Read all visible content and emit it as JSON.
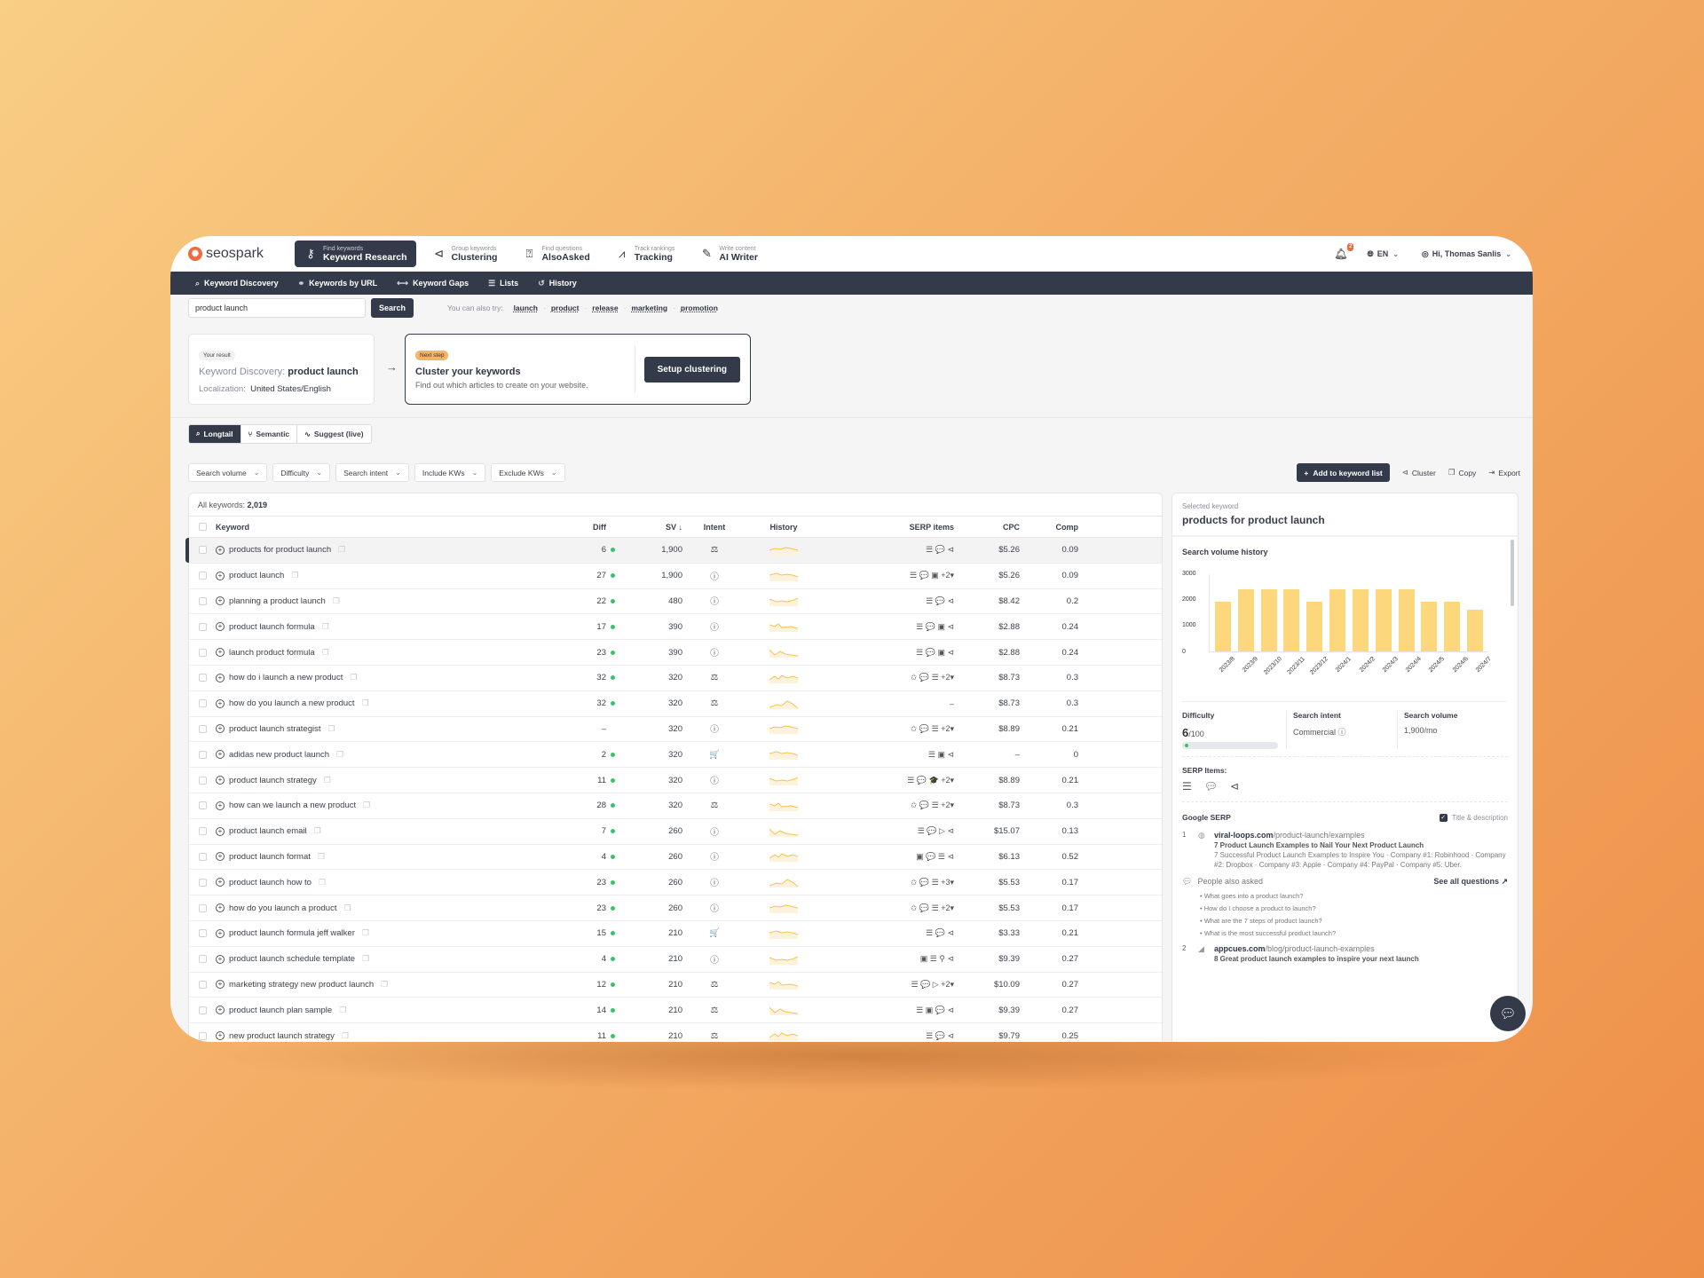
{
  "app": {
    "logo_text": "seospark",
    "logo_icon": "spark-logo-icon"
  },
  "topnav": {
    "items": [
      {
        "sub": "Find keywords",
        "label": "Keyword Research",
        "icon": "key-icon",
        "active": true
      },
      {
        "sub": "Group keywords",
        "label": "Clustering",
        "icon": "cluster-icon"
      },
      {
        "sub": "Find questions",
        "label": "AlsoAsked",
        "icon": "question-chat-icon"
      },
      {
        "sub": "Track rankings",
        "label": "Tracking",
        "icon": "chart-line-icon"
      },
      {
        "sub": "Write content",
        "label": "AI Writer",
        "icon": "feather-icon"
      }
    ],
    "notifications": "2",
    "language": "EN",
    "user_greeting": "Hi, Thomas Sanlis"
  },
  "subnav": {
    "items": [
      {
        "label": "Keyword Discovery",
        "icon": "search-icon"
      },
      {
        "label": "Keywords by URL",
        "icon": "link-icon"
      },
      {
        "label": "Keyword Gaps",
        "icon": "gap-icon"
      },
      {
        "label": "Lists",
        "icon": "list-icon"
      },
      {
        "label": "History",
        "icon": "history-icon"
      }
    ]
  },
  "search": {
    "value": "product launch",
    "button": "Search",
    "try_label": "You can also try:",
    "suggestions": [
      "launch",
      "product",
      "release",
      "marketing",
      "promotion"
    ]
  },
  "result_card": {
    "pill": "Your result",
    "title_prefix": "Keyword Discovery:",
    "title_keyword": "product launch",
    "loc_label": "Localization:",
    "loc_value": "United States/English"
  },
  "next_step": {
    "pill": "Next step",
    "title": "Cluster your keywords",
    "subtitle": "Find out which articles to create on your website.",
    "button": "Setup clustering"
  },
  "tabs": [
    {
      "label": "Longtail",
      "icon": "search-icon",
      "active": true
    },
    {
      "label": "Semantic",
      "icon": "branch-icon"
    },
    {
      "label": "Suggest (live)",
      "icon": "pulse-icon"
    }
  ],
  "filters": [
    "Search volume",
    "Difficulty",
    "Search intent",
    "Include KWs",
    "Exclude KWs"
  ],
  "actions": {
    "add": "Add to keyword list",
    "cluster": "Cluster",
    "copy": "Copy",
    "export": "Export"
  },
  "table": {
    "count_label": "All keywords:",
    "count": "2,019",
    "headers": {
      "keyword": "Keyword",
      "diff": "Diff",
      "sv": "SV",
      "intent": "Intent",
      "history": "History",
      "serp": "SERP items",
      "cpc": "CPC",
      "comp": "Comp"
    },
    "rows": [
      {
        "kw": "products for product launch",
        "diff": "6",
        "sv": "1,900",
        "intent": "⚖",
        "serp": "☰ 💬 ⊲",
        "cpc": "$5.26",
        "comp": "0.09"
      },
      {
        "kw": "product launch",
        "diff": "27",
        "sv": "1,900",
        "intent": "ⓘ",
        "serp": "☰ 💬 ▣ +2▾",
        "cpc": "$5.26",
        "comp": "0.09"
      },
      {
        "kw": "planning a product launch",
        "diff": "22",
        "sv": "480",
        "intent": "ⓘ",
        "serp": "☰ 💬 ⊲",
        "cpc": "$8.42",
        "comp": "0.2"
      },
      {
        "kw": "product launch formula",
        "diff": "17",
        "sv": "390",
        "intent": "ⓘ",
        "serp": "☰ 💬 ▣ ⊲",
        "cpc": "$2.88",
        "comp": "0.24"
      },
      {
        "kw": "launch product formula",
        "diff": "23",
        "sv": "390",
        "intent": "ⓘ",
        "serp": "☰ 💬 ▣ ⊲",
        "cpc": "$2.88",
        "comp": "0.24"
      },
      {
        "kw": "how do i launch a new product",
        "diff": "32",
        "sv": "320",
        "intent": "⚖",
        "serp": "✩ 💬 ☰ +2▾",
        "cpc": "$8.73",
        "comp": "0.3"
      },
      {
        "kw": "how do you launch a new product",
        "diff": "32",
        "sv": "320",
        "intent": "⚖",
        "serp": "–",
        "cpc": "$8.73",
        "comp": "0.3"
      },
      {
        "kw": "product launch strategist",
        "diff": "–",
        "sv": "320",
        "intent": "ⓘ",
        "serp": "✩ 💬 ☰ +2▾",
        "cpc": "$8.89",
        "comp": "0.21"
      },
      {
        "kw": "adidas new product launch",
        "diff": "2",
        "sv": "320",
        "intent": "🛒",
        "serp": "☰ ▣ ⊲",
        "cpc": "–",
        "comp": "0"
      },
      {
        "kw": "product launch strategy",
        "diff": "11",
        "sv": "320",
        "intent": "ⓘ",
        "serp": "☰ 💬 🎓 +2▾",
        "cpc": "$8.89",
        "comp": "0.21"
      },
      {
        "kw": "how can we launch a new product",
        "diff": "28",
        "sv": "320",
        "intent": "⚖",
        "serp": "✩ 💬 ☰ +2▾",
        "cpc": "$8.73",
        "comp": "0.3"
      },
      {
        "kw": "product launch email",
        "diff": "7",
        "sv": "260",
        "intent": "ⓘ",
        "serp": "☰ 💬 ▷ ⊲",
        "cpc": "$15.07",
        "comp": "0.13"
      },
      {
        "kw": "product launch format",
        "diff": "4",
        "sv": "260",
        "intent": "ⓘ",
        "serp": "▣ 💬 ☰ ⊲",
        "cpc": "$6.13",
        "comp": "0.52"
      },
      {
        "kw": "product launch how to",
        "diff": "23",
        "sv": "260",
        "intent": "ⓘ",
        "serp": "✩ 💬 ☰ +3▾",
        "cpc": "$5.53",
        "comp": "0.17"
      },
      {
        "kw": "how do you launch a product",
        "diff": "23",
        "sv": "260",
        "intent": "ⓘ",
        "serp": "✩ 💬 ☰ +2▾",
        "cpc": "$5.53",
        "comp": "0.17"
      },
      {
        "kw": "product launch formula jeff walker",
        "diff": "15",
        "sv": "210",
        "intent": "🛒",
        "serp": "☰ 💬 ⊲",
        "cpc": "$3.33",
        "comp": "0.21"
      },
      {
        "kw": "product launch schedule template",
        "diff": "4",
        "sv": "210",
        "intent": "ⓘ",
        "serp": "▣ ☰ ⚲ ⊲",
        "cpc": "$9.39",
        "comp": "0.27"
      },
      {
        "kw": "marketing strategy new product launch",
        "diff": "12",
        "sv": "210",
        "intent": "⚖",
        "serp": "☰ 💬 ▷ +2▾",
        "cpc": "$10.09",
        "comp": "0.27"
      },
      {
        "kw": "product launch plan sample",
        "diff": "14",
        "sv": "210",
        "intent": "⚖",
        "serp": "☰ ▣ 💬 ⊲",
        "cpc": "$9.39",
        "comp": "0.27"
      },
      {
        "kw": "new product launch strategy",
        "diff": "11",
        "sv": "210",
        "intent": "⚖",
        "serp": "☰ 💬 ⊲",
        "cpc": "$9.79",
        "comp": "0.25"
      }
    ]
  },
  "panel": {
    "selected_label": "Selected keyword",
    "selected_keyword": "products for product launch",
    "history_title": "Search volume history",
    "difficulty_label": "Difficulty",
    "difficulty_value": "6",
    "difficulty_max": "/100",
    "intent_label": "Search intent",
    "intent_value": "Commercial ⓘ",
    "volume_label": "Search volume",
    "volume_value": "1,900/mo",
    "serp_items_label": "SERP Items:",
    "google_serp_label": "Google SERP",
    "title_desc_label": "Title & description",
    "results": [
      {
        "num": "1",
        "domain": "viral-loops.com",
        "path": "/product-launch/examples",
        "title": "7 Product Launch Examples to Nail Your Next Product Launch",
        "desc": "7 Successful Product Launch Examples to Inspire You · Company #1: Robinhood · Company #2: Dropbox · Company #3: Apple · Company #4: PayPal · Company #5: Uber."
      },
      {
        "num": "2",
        "domain": "appcues.com",
        "path": "/blog/product-launch-examples",
        "title": "8 Great product launch examples to inspire your next launch"
      }
    ],
    "paa_label": "People also asked",
    "see_all": "See all questions ↗",
    "questions": [
      "• What goes into a product launch?",
      "• How do I choose a product to launch?",
      "• What are the 7 steps of product launch?",
      "• What is the most successful product launch?"
    ]
  },
  "chart_data": {
    "type": "bar",
    "title": "Search volume history",
    "categories": [
      "2023/8",
      "2023/9",
      "2023/10",
      "2023/11",
      "2023/12",
      "2024/1",
      "2024/2",
      "2024/3",
      "2024/4",
      "2024/5",
      "2024/6",
      "2024/7"
    ],
    "values": [
      1900,
      2400,
      2400,
      2400,
      1900,
      2400,
      2400,
      2400,
      2400,
      1900,
      1900,
      1600
    ],
    "ylim": [
      0,
      3000
    ],
    "yticks": [
      0,
      1000,
      2000,
      3000
    ],
    "color": "#fdd77c"
  },
  "colors": {
    "dark": "#333b4a",
    "accent": "#ef6a3f",
    "green": "#3bc16e",
    "bar": "#fdd77c",
    "next_pill": "#f6b46a"
  }
}
